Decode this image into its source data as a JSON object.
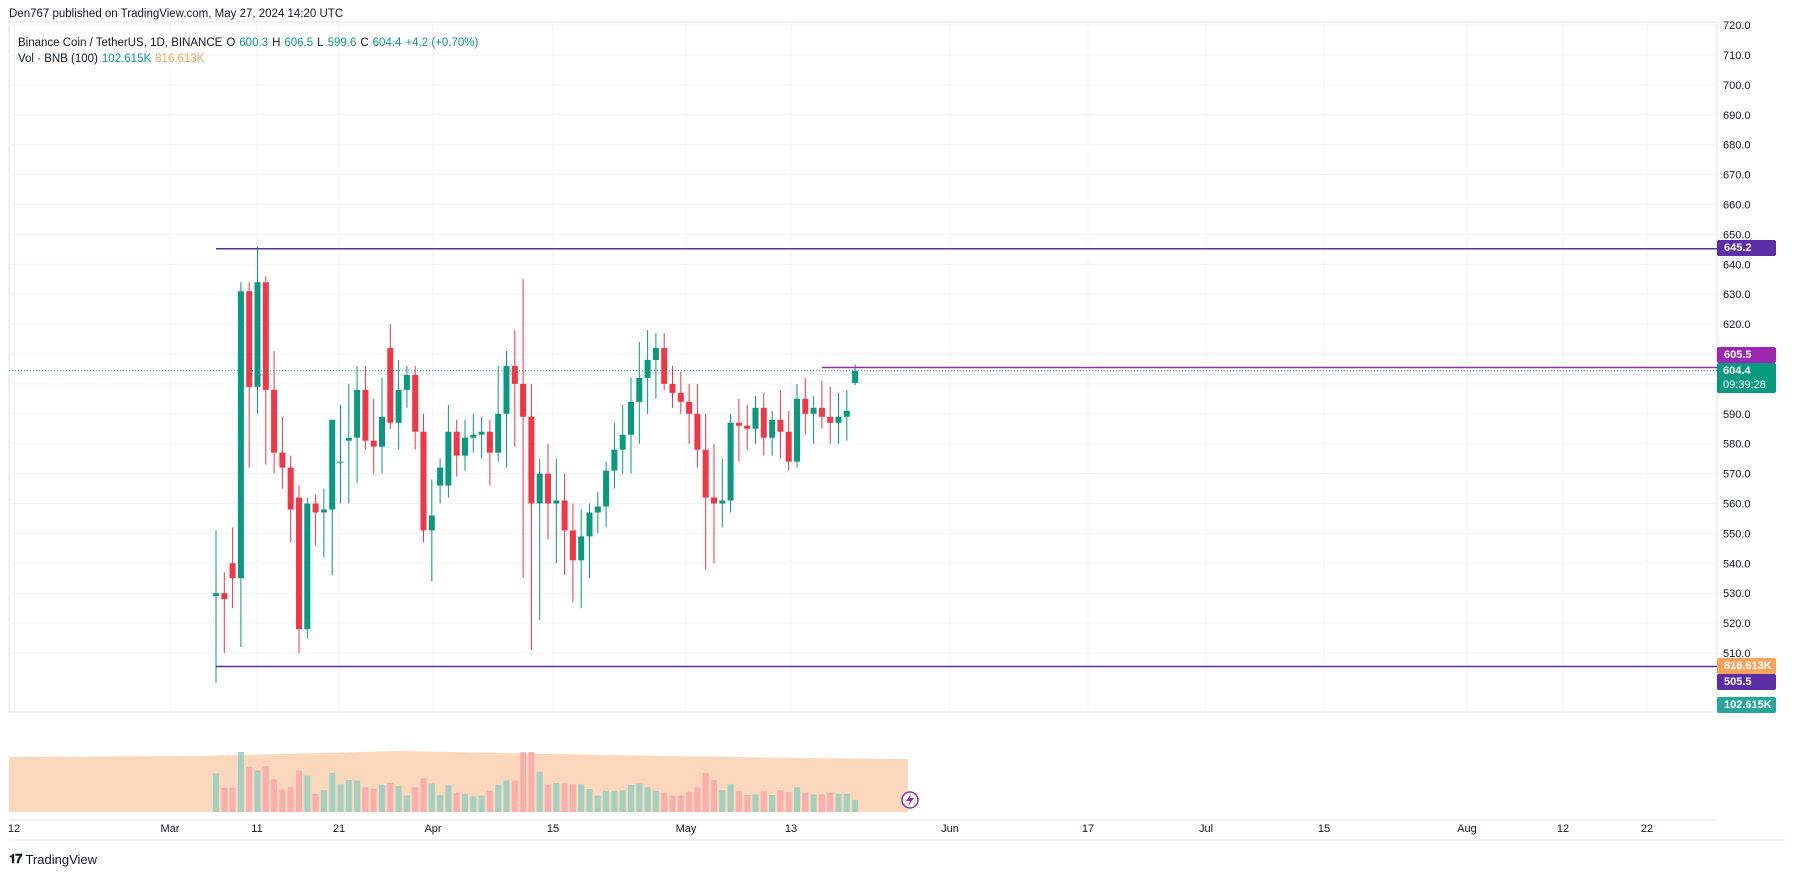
{
  "header": {
    "published_text": "Den767 published on TradingView.com, May 27, 2024 14:20 UTC"
  },
  "legend": {
    "symbol": "Binance Coin / TetherUS, 1D, BINANCE",
    "open_label": "O",
    "open": "600.3",
    "high_label": "H",
    "high": "606.5",
    "low_label": "L",
    "low": "599.6",
    "close_label": "C",
    "close": "604.4",
    "change": "+4.2 (+0.70%)",
    "volume_label": "Vol · BNB (100)",
    "volume_value": "102.615K",
    "volume_ma": "816.613K"
  },
  "badges": {
    "upper_level": "645.2",
    "mid_level": "605.5",
    "last_price": "604.4",
    "countdown": "09:39:28",
    "volume_ma": "816.613K",
    "lower_level": "505.5",
    "volume_last": "102.615K"
  },
  "colors": {
    "up": "#089981",
    "down": "#f23645",
    "up_volume": "#8ccfc2",
    "down_volume": "#f7a5a9",
    "volume_ma_fill": "#f9c9a6",
    "level_line": "#5b2ea6",
    "mid_level": "#9c27b0",
    "grid": "#f0f3fa",
    "text": "#131722"
  },
  "footer": {
    "logo_text": "TradingView",
    "logo_icon": "tradingview-logo-icon"
  },
  "chart_data": {
    "type": "candlestick",
    "title": "Binance Coin / TetherUS, 1D, BINANCE",
    "y_axis": {
      "ticks": [
        "510.0",
        "520.0",
        "530.0",
        "540.0",
        "550.0",
        "560.0",
        "570.0",
        "580.0",
        "590.0",
        "600.0",
        "610.0",
        "620.0",
        "630.0",
        "640.0",
        "650.0",
        "660.0",
        "670.0",
        "680.0",
        "690.0",
        "700.0",
        "710.0",
        "720.0"
      ],
      "range": [
        500,
        722
      ]
    },
    "x_axis": {
      "ticks": [
        "12",
        "Mar",
        "11",
        "21",
        "Apr",
        "15",
        "May",
        "13",
        "Jun",
        "17",
        "Jul",
        "15",
        "Aug",
        "12",
        "22"
      ]
    },
    "horizontal_levels": [
      {
        "name": "resistance",
        "value": 645.2,
        "start": "2024-03-11"
      },
      {
        "name": "support",
        "value": 505.5,
        "start": "2024-03-11"
      },
      {
        "name": "current-range-top",
        "value": 605.5,
        "start": "2024-05-23"
      }
    ],
    "candles": [
      {
        "date": "2024-03-11",
        "o": 529,
        "h": 551,
        "l": 500,
        "c": 530
      },
      {
        "date": "2024-03-12",
        "o": 530,
        "h": 537,
        "l": 510,
        "c": 528
      },
      {
        "date": "2024-03-13",
        "o": 540,
        "h": 552,
        "l": 525,
        "c": 535
      },
      {
        "date": "2024-03-14",
        "o": 535,
        "h": 634,
        "l": 512,
        "c": 631
      },
      {
        "date": "2024-03-15",
        "o": 631,
        "h": 634,
        "l": 572,
        "c": 599
      },
      {
        "date": "2024-03-16",
        "o": 599,
        "h": 646,
        "l": 590,
        "c": 634
      },
      {
        "date": "2024-03-17",
        "o": 634,
        "h": 636,
        "l": 573,
        "c": 598
      },
      {
        "date": "2024-03-18",
        "o": 598,
        "h": 611,
        "l": 570,
        "c": 577
      },
      {
        "date": "2024-03-19",
        "o": 577,
        "h": 589,
        "l": 565,
        "c": 572
      },
      {
        "date": "2024-03-20",
        "o": 572,
        "h": 576,
        "l": 547,
        "c": 558
      },
      {
        "date": "2024-03-21",
        "o": 562,
        "h": 566,
        "l": 510,
        "c": 518
      },
      {
        "date": "2024-03-22",
        "o": 518,
        "h": 562,
        "l": 515,
        "c": 560
      },
      {
        "date": "2024-03-23",
        "o": 560,
        "h": 563,
        "l": 546,
        "c": 557
      },
      {
        "date": "2024-03-24",
        "o": 557,
        "h": 565,
        "l": 542,
        "c": 558
      },
      {
        "date": "2024-03-25",
        "o": 558,
        "h": 588,
        "l": 536,
        "c": 588
      },
      {
        "date": "2024-03-26",
        "o": 574,
        "h": 593,
        "l": 560,
        "c": 574
      },
      {
        "date": "2024-03-27",
        "o": 581,
        "h": 600,
        "l": 560,
        "c": 582
      },
      {
        "date": "2024-03-28",
        "o": 582,
        "h": 606,
        "l": 567,
        "c": 598
      },
      {
        "date": "2024-03-29",
        "o": 598,
        "h": 606,
        "l": 578,
        "c": 581
      },
      {
        "date": "2024-03-30",
        "o": 581,
        "h": 595,
        "l": 570,
        "c": 579
      },
      {
        "date": "2024-03-31",
        "o": 579,
        "h": 602,
        "l": 570,
        "c": 589
      },
      {
        "date": "2024-04-01",
        "o": 612,
        "h": 620,
        "l": 585,
        "c": 587
      },
      {
        "date": "2024-04-02",
        "o": 587,
        "h": 608,
        "l": 578,
        "c": 598
      },
      {
        "date": "2024-04-03",
        "o": 598,
        "h": 606,
        "l": 592,
        "c": 603
      },
      {
        "date": "2024-04-04",
        "o": 603,
        "h": 606,
        "l": 578,
        "c": 584
      },
      {
        "date": "2024-04-05",
        "o": 584,
        "h": 590,
        "l": 547,
        "c": 551
      },
      {
        "date": "2024-04-06",
        "o": 551,
        "h": 568,
        "l": 534,
        "c": 556
      },
      {
        "date": "2024-04-07",
        "o": 566,
        "h": 575,
        "l": 560,
        "c": 572
      },
      {
        "date": "2024-04-08",
        "o": 566,
        "h": 593,
        "l": 562,
        "c": 584
      },
      {
        "date": "2024-04-09",
        "o": 584,
        "h": 588,
        "l": 569,
        "c": 576
      },
      {
        "date": "2024-04-10",
        "o": 576,
        "h": 588,
        "l": 571,
        "c": 582
      },
      {
        "date": "2024-04-11",
        "o": 582,
        "h": 590,
        "l": 577,
        "c": 583
      },
      {
        "date": "2024-04-12",
        "o": 583,
        "h": 589,
        "l": 575,
        "c": 584
      },
      {
        "date": "2024-04-13",
        "o": 584,
        "h": 588,
        "l": 566,
        "c": 577
      },
      {
        "date": "2024-04-14",
        "o": 577,
        "h": 606,
        "l": 574,
        "c": 590
      },
      {
        "date": "2024-04-15",
        "o": 590,
        "h": 611,
        "l": 572,
        "c": 606
      },
      {
        "date": "2024-04-16",
        "o": 606,
        "h": 618,
        "l": 579,
        "c": 600
      },
      {
        "date": "2024-04-17",
        "o": 600,
        "h": 635,
        "l": 535,
        "c": 589
      },
      {
        "date": "2024-04-18",
        "o": 589,
        "h": 600,
        "l": 511,
        "c": 560
      },
      {
        "date": "2024-04-19",
        "o": 560,
        "h": 575,
        "l": 521,
        "c": 570
      },
      {
        "date": "2024-04-20",
        "o": 570,
        "h": 580,
        "l": 548,
        "c": 560
      },
      {
        "date": "2024-04-21",
        "o": 560,
        "h": 575,
        "l": 540,
        "c": 561
      },
      {
        "date": "2024-04-22",
        "o": 561,
        "h": 570,
        "l": 536,
        "c": 551
      },
      {
        "date": "2024-04-23",
        "o": 551,
        "h": 560,
        "l": 527,
        "c": 541
      },
      {
        "date": "2024-04-24",
        "o": 541,
        "h": 558,
        "l": 525,
        "c": 549
      },
      {
        "date": "2024-04-25",
        "o": 549,
        "h": 560,
        "l": 535,
        "c": 557
      },
      {
        "date": "2024-04-26",
        "o": 557,
        "h": 564,
        "l": 550,
        "c": 559
      },
      {
        "date": "2024-04-27",
        "o": 559,
        "h": 574,
        "l": 552,
        "c": 571
      },
      {
        "date": "2024-04-28",
        "o": 571,
        "h": 587,
        "l": 565,
        "c": 578
      },
      {
        "date": "2024-04-29",
        "o": 578,
        "h": 593,
        "l": 570,
        "c": 583
      },
      {
        "date": "2024-04-30",
        "o": 583,
        "h": 602,
        "l": 570,
        "c": 594
      },
      {
        "date": "2024-05-01",
        "o": 594,
        "h": 614,
        "l": 580,
        "c": 602
      },
      {
        "date": "2024-05-02",
        "o": 602,
        "h": 618,
        "l": 590,
        "c": 608
      },
      {
        "date": "2024-05-03",
        "o": 608,
        "h": 617,
        "l": 595,
        "c": 612
      },
      {
        "date": "2024-05-04",
        "o": 612,
        "h": 617,
        "l": 598,
        "c": 600
      },
      {
        "date": "2024-05-05",
        "o": 600,
        "h": 606,
        "l": 592,
        "c": 597
      },
      {
        "date": "2024-05-06",
        "o": 597,
        "h": 604,
        "l": 590,
        "c": 594
      },
      {
        "date": "2024-05-07",
        "o": 594,
        "h": 600,
        "l": 580,
        "c": 590
      },
      {
        "date": "2024-05-08",
        "o": 590,
        "h": 600,
        "l": 572,
        "c": 578
      },
      {
        "date": "2024-05-09",
        "o": 578,
        "h": 590,
        "l": 538,
        "c": 562
      },
      {
        "date": "2024-05-10",
        "o": 562,
        "h": 580,
        "l": 540,
        "c": 560
      },
      {
        "date": "2024-05-11",
        "o": 560,
        "h": 575,
        "l": 552,
        "c": 561
      },
      {
        "date": "2024-05-12",
        "o": 561,
        "h": 590,
        "l": 557,
        "c": 587
      },
      {
        "date": "2024-05-13",
        "o": 587,
        "h": 595,
        "l": 574,
        "c": 586
      },
      {
        "date": "2024-05-14",
        "o": 586,
        "h": 593,
        "l": 578,
        "c": 585
      },
      {
        "date": "2024-05-15",
        "o": 585,
        "h": 596,
        "l": 580,
        "c": 592
      },
      {
        "date": "2024-05-16",
        "o": 592,
        "h": 597,
        "l": 576,
        "c": 582
      },
      {
        "date": "2024-05-17",
        "o": 582,
        "h": 591,
        "l": 576,
        "c": 588
      },
      {
        "date": "2024-05-18",
        "o": 588,
        "h": 598,
        "l": 575,
        "c": 584
      },
      {
        "date": "2024-05-19",
        "o": 584,
        "h": 591,
        "l": 571,
        "c": 574
      },
      {
        "date": "2024-05-20",
        "o": 574,
        "h": 600,
        "l": 572,
        "c": 595
      },
      {
        "date": "2024-05-21",
        "o": 595,
        "h": 602,
        "l": 583,
        "c": 590
      },
      {
        "date": "2024-05-22",
        "o": 590,
        "h": 596,
        "l": 580,
        "c": 592
      },
      {
        "date": "2024-05-23",
        "o": 592,
        "h": 601,
        "l": 585,
        "c": 589
      },
      {
        "date": "2024-05-24",
        "o": 589,
        "h": 599,
        "l": 580,
        "c": 587
      },
      {
        "date": "2024-05-25",
        "o": 587,
        "h": 597,
        "l": 580,
        "c": 589
      },
      {
        "date": "2024-05-26",
        "o": 589,
        "h": 598,
        "l": 581,
        "c": 591
      },
      {
        "date": "2024-05-27",
        "o": 600.3,
        "h": 606.5,
        "l": 599.6,
        "c": 604.4
      }
    ]
  }
}
